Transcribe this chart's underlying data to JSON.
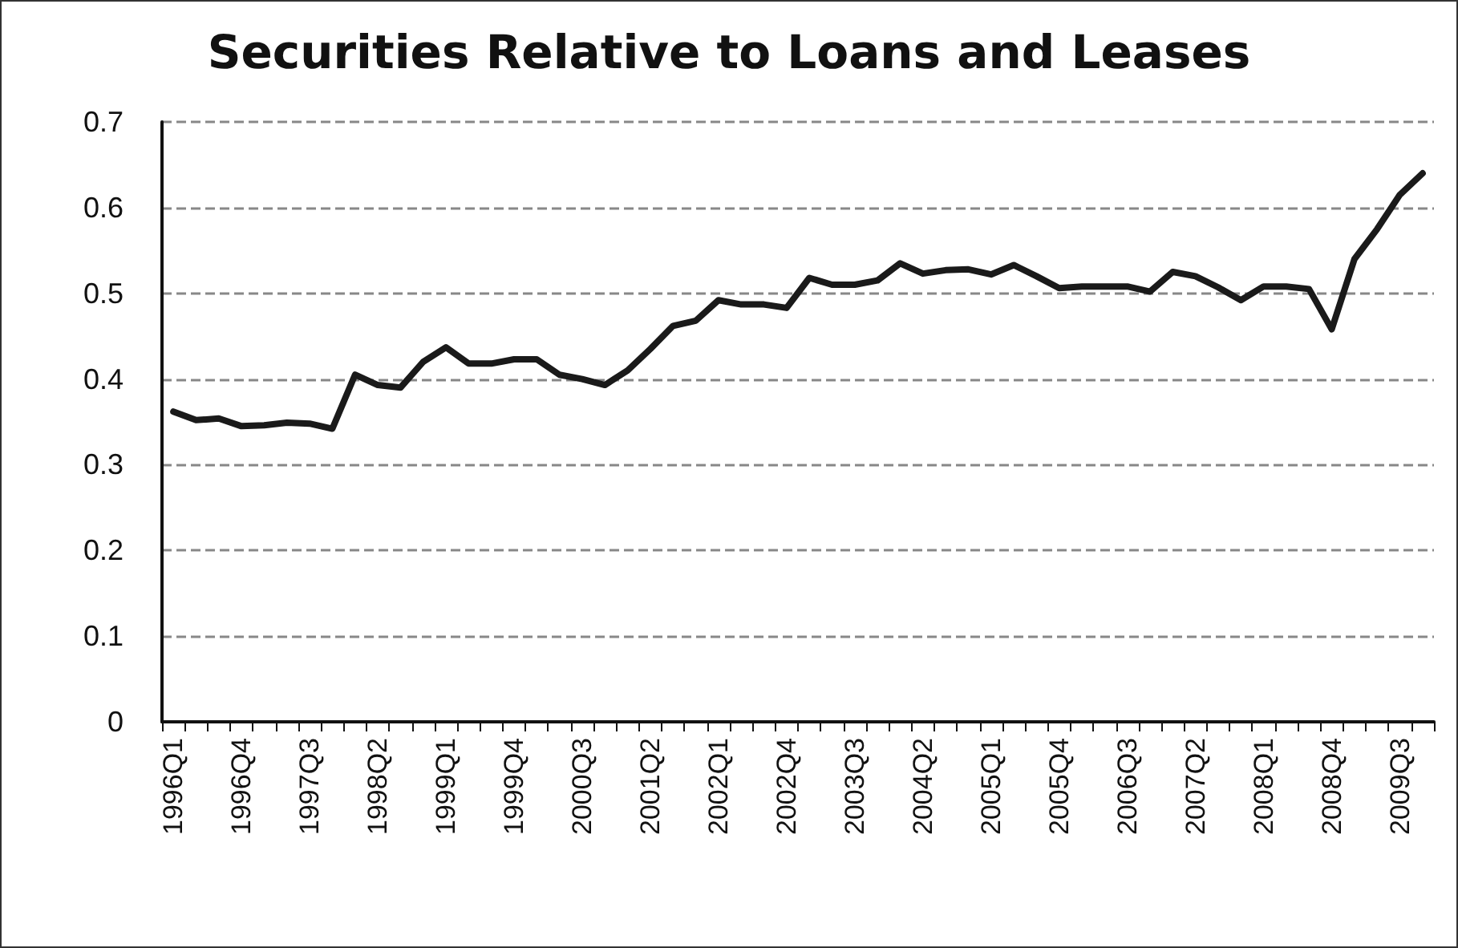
{
  "chart_data": {
    "type": "line",
    "title": "Securities Relative to Loans and Leases",
    "categories": [
      "1996Q1",
      null,
      null,
      "1996Q4",
      null,
      null,
      "1997Q3",
      null,
      null,
      "1998Q2",
      null,
      null,
      "1999Q1",
      null,
      null,
      "1999Q4",
      null,
      null,
      "2000Q3",
      null,
      null,
      "2001Q2",
      null,
      null,
      "2002Q1",
      null,
      null,
      "2002Q4",
      null,
      null,
      "2003Q3",
      null,
      null,
      "2004Q2",
      null,
      null,
      "2005Q1",
      null,
      null,
      "2005Q4",
      null,
      null,
      "2006Q3",
      null,
      null,
      "2007Q2",
      null,
      null,
      "2008Q1",
      null,
      null,
      "2008Q4",
      null,
      null,
      "2009Q3",
      null
    ],
    "series": [
      {
        "color": "#1a1a1a",
        "values": [
          0.362,
          0.352,
          0.354,
          0.345,
          0.346,
          0.349,
          0.348,
          0.342,
          0.405,
          0.393,
          0.39,
          0.42,
          0.437,
          0.418,
          0.418,
          0.423,
          0.423,
          0.405,
          0.4,
          0.393,
          0.41,
          0.435,
          0.462,
          0.468,
          0.492,
          0.487,
          0.487,
          0.483,
          0.518,
          0.51,
          0.51,
          0.515,
          0.535,
          0.523,
          0.527,
          0.528,
          0.522,
          0.533,
          0.52,
          0.506,
          0.508,
          0.508,
          0.508,
          0.502,
          0.525,
          0.52,
          0.507,
          0.492,
          0.508,
          0.508,
          0.505,
          0.458,
          0.54,
          0.575,
          0.615,
          0.64
        ]
      }
    ],
    "ylim": [
      0,
      0.7
    ],
    "yticks": [
      0,
      0.1,
      0.2,
      0.3,
      0.4,
      0.5,
      0.6,
      0.7
    ],
    "grid": "y",
    "marker": "none",
    "line_style": "solid"
  }
}
